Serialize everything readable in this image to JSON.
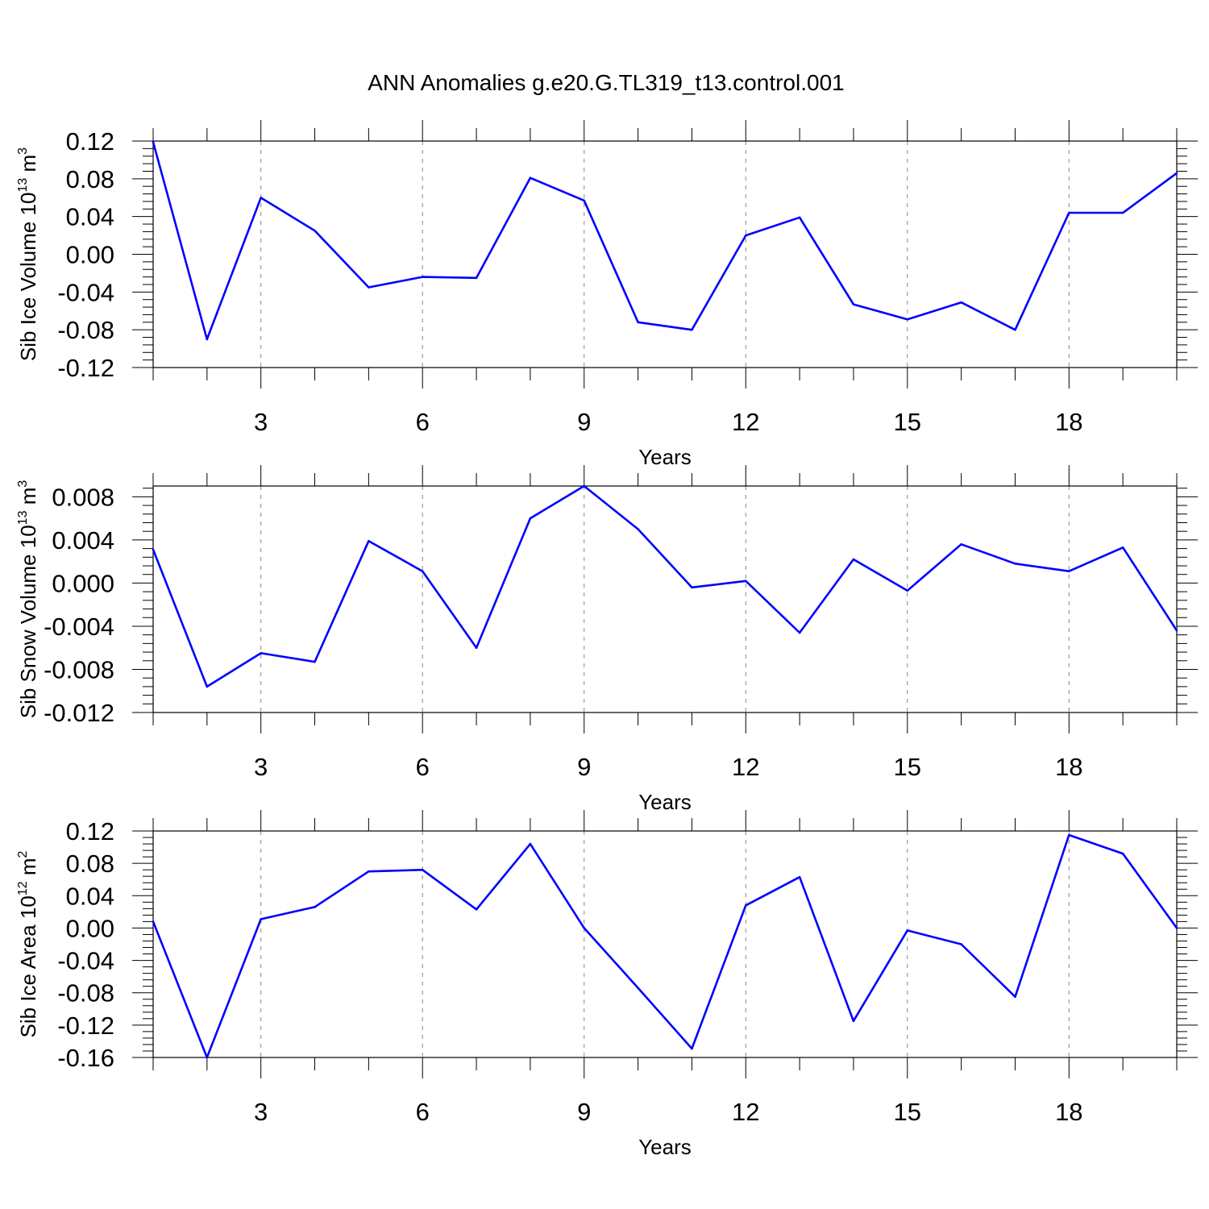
{
  "title": "ANN Anomalies g.e20.G.TL319_t13.control.001",
  "line_color": "#0000ff",
  "chart_data": [
    {
      "type": "line",
      "xlabel": "Years",
      "ylabel": {
        "prefix": "Sib Ice Volume 10",
        "exp": "13",
        "unit": " m",
        "unit_exp": "3"
      },
      "xlim": [
        1,
        20
      ],
      "ylim": [
        -0.12,
        0.12
      ],
      "xticks": [
        3,
        6,
        9,
        12,
        15,
        18
      ],
      "xtick_labels": [
        "3",
        "6",
        "9",
        "12",
        "15",
        "18"
      ],
      "yticks": [
        0.12,
        0.08,
        0.04,
        0.0,
        -0.04,
        -0.08,
        -0.12
      ],
      "ytick_labels": [
        "0.12",
        "0.08",
        "0.04",
        "0.00",
        "-0.04",
        "-0.08",
        "-0.12"
      ],
      "grid": "vertical-dashed",
      "series": [
        {
          "name": "Sib Ice Volume",
          "x": [
            1,
            2,
            3,
            4,
            5,
            6,
            7,
            8,
            9,
            10,
            11,
            12,
            13,
            14,
            15,
            16,
            17,
            18,
            19,
            20
          ],
          "values": [
            0.119,
            -0.09,
            0.06,
            0.025,
            -0.035,
            -0.024,
            -0.025,
            0.081,
            0.057,
            -0.072,
            -0.08,
            0.02,
            0.039,
            -0.053,
            -0.069,
            -0.051,
            -0.08,
            0.044,
            0.044,
            0.086
          ]
        }
      ]
    },
    {
      "type": "line",
      "xlabel": "Years",
      "ylabel": {
        "prefix": "Sib Snow Volume 10",
        "exp": "13",
        "unit": " m",
        "unit_exp": "3"
      },
      "xlim": [
        1,
        20
      ],
      "ylim": [
        -0.012,
        0.009
      ],
      "xticks": [
        3,
        6,
        9,
        12,
        15,
        18
      ],
      "xtick_labels": [
        "3",
        "6",
        "9",
        "12",
        "15",
        "18"
      ],
      "yticks": [
        0.008,
        0.004,
        0.0,
        -0.004,
        -0.008,
        -0.012
      ],
      "ytick_labels": [
        "0.008",
        "0.004",
        "0.000",
        "-0.004",
        "-0.008",
        "-0.012"
      ],
      "grid": "vertical-dashed",
      "series": [
        {
          "name": "Sib Snow Volume",
          "x": [
            1,
            2,
            3,
            4,
            5,
            6,
            7,
            8,
            9,
            10,
            11,
            12,
            13,
            14,
            15,
            16,
            17,
            18,
            19,
            20
          ],
          "values": [
            0.0031,
            -0.0096,
            -0.0065,
            -0.0073,
            0.0039,
            0.0011,
            -0.006,
            0.006,
            0.009,
            0.005,
            -0.0004,
            0.0002,
            -0.0046,
            0.0022,
            -0.0007,
            0.0036,
            0.0018,
            0.0011,
            0.0033,
            -0.0044
          ]
        }
      ]
    },
    {
      "type": "line",
      "xlabel": "Years",
      "ylabel": {
        "prefix": "Sib Ice Area 10",
        "exp": "12",
        "unit": " m",
        "unit_exp": "2"
      },
      "xlim": [
        1,
        20
      ],
      "ylim": [
        -0.16,
        0.12
      ],
      "xticks": [
        3,
        6,
        9,
        12,
        15,
        18
      ],
      "xtick_labels": [
        "3",
        "6",
        "9",
        "12",
        "15",
        "18"
      ],
      "yticks": [
        0.12,
        0.08,
        0.04,
        0.0,
        -0.04,
        -0.08,
        -0.12,
        -0.16
      ],
      "ytick_labels": [
        "0.12",
        "0.08",
        "0.04",
        "0.00",
        "-0.04",
        "-0.08",
        "-0.12",
        "-0.16"
      ],
      "grid": "vertical-dashed",
      "series": [
        {
          "name": "Sib Ice Area",
          "x": [
            1,
            2,
            3,
            4,
            5,
            6,
            7,
            8,
            9,
            10,
            11,
            12,
            13,
            14,
            15,
            16,
            17,
            18,
            19,
            20
          ],
          "values": [
            0.008,
            -0.16,
            0.011,
            0.026,
            0.07,
            0.072,
            0.023,
            0.104,
            0.0,
            -0.074,
            -0.149,
            0.028,
            0.063,
            -0.115,
            -0.003,
            -0.02,
            -0.085,
            0.115,
            0.092,
            0.0
          ]
        }
      ]
    }
  ]
}
